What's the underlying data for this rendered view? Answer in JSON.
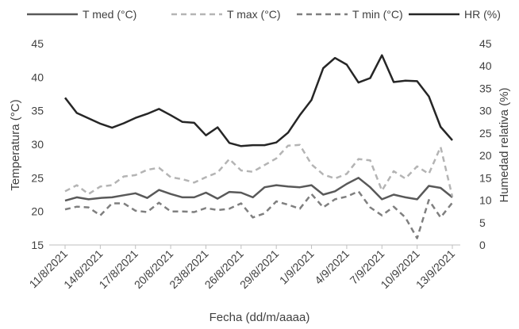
{
  "chart_data": {
    "type": "line",
    "xlabel": "Fecha (dd/m/aaaa)",
    "ylabel_left": "Temperatura (°C)",
    "ylabel_right": "Humedad relativa (%)",
    "ylim_left": [
      15,
      45
    ],
    "ylim_right": [
      0,
      45
    ],
    "yticks_left": [
      15,
      20,
      25,
      30,
      35,
      40,
      45
    ],
    "yticks_right": [
      0,
      5,
      10,
      15,
      20,
      25,
      30,
      35,
      40,
      45
    ],
    "grid": false,
    "legend": "top",
    "x": [
      "11/8/2021",
      "12/8/2021",
      "13/8/2021",
      "14/8/2021",
      "15/8/2021",
      "16/8/2021",
      "17/8/2021",
      "18/8/2021",
      "19/8/2021",
      "20/8/2021",
      "21/8/2021",
      "22/8/2021",
      "23/8/2021",
      "24/8/2021",
      "25/8/2021",
      "26/8/2021",
      "27/8/2021",
      "28/8/2021",
      "29/8/2021",
      "30/8/2021",
      "31/8/2021",
      "1/9/2021",
      "2/9/2021",
      "3/9/2021",
      "4/9/2021",
      "5/9/2021",
      "6/9/2021",
      "7/9/2021",
      "8/9/2021",
      "9/9/2021",
      "10/9/2021",
      "11/9/2021",
      "12/9/2021",
      "13/9/2021"
    ],
    "xtick_labels": [
      "11/8/2021",
      "14/8/2021",
      "17/8/2021",
      "20/8/2021",
      "23/8/2021",
      "26/8/2021",
      "29/8/2021",
      "1/9/2021",
      "4/9/2021",
      "7/9/2021",
      "10/9/2021",
      "13/9/2021"
    ],
    "series": [
      {
        "name": "T med (°C)",
        "axis": "left",
        "color": "#595959",
        "dash": "solid",
        "values": [
          21.6,
          22.1,
          21.8,
          22.0,
          22.1,
          22.4,
          22.7,
          22.0,
          23.2,
          22.6,
          22.1,
          22.1,
          22.8,
          21.9,
          22.9,
          22.8,
          22.1,
          23.6,
          23.9,
          23.7,
          23.6,
          23.9,
          22.5,
          23.0,
          24.1,
          25.0,
          23.6,
          21.8,
          22.5,
          22.1,
          21.8,
          23.8,
          23.5,
          22.1
        ]
      },
      {
        "name": "T max (°C)",
        "axis": "left",
        "color": "#b4b4b4",
        "dash": "dashed",
        "values": [
          23.0,
          23.9,
          22.6,
          23.7,
          23.9,
          25.2,
          25.4,
          26.2,
          26.5,
          25.1,
          24.8,
          24.3,
          25.1,
          25.8,
          27.8,
          26.1,
          25.9,
          26.9,
          27.9,
          29.8,
          29.9,
          27.0,
          25.5,
          24.9,
          25.6,
          27.8,
          27.6,
          23.1,
          26.0,
          24.9,
          26.7,
          25.6,
          29.6,
          22.2
        ]
      },
      {
        "name": "T min (°C)",
        "axis": "left",
        "color": "#7f7f7f",
        "dash": "dashed",
        "values": [
          20.3,
          20.7,
          20.6,
          19.4,
          21.2,
          21.2,
          20.1,
          19.9,
          21.3,
          20.0,
          20.0,
          19.9,
          20.5,
          20.2,
          20.4,
          21.2,
          19.1,
          19.7,
          21.5,
          21.0,
          20.4,
          22.6,
          20.6,
          21.8,
          22.2,
          23.0,
          20.6,
          19.4,
          20.7,
          19.1,
          16.0,
          21.7,
          19.1,
          21.3
        ]
      },
      {
        "name": "HR (%)",
        "axis": "right",
        "color": "#262626",
        "dash": "solid",
        "values": [
          32.9,
          29.5,
          28.3,
          27.1,
          26.2,
          27.2,
          28.4,
          29.3,
          30.4,
          29.0,
          27.5,
          27.3,
          24.5,
          26.3,
          22.8,
          22.1,
          22.3,
          22.3,
          22.9,
          25.1,
          29.0,
          32.4,
          39.5,
          41.8,
          40.3,
          36.3,
          37.3,
          42.4,
          36.4,
          36.7,
          36.6,
          33.2,
          26.4,
          23.4
        ]
      }
    ]
  }
}
